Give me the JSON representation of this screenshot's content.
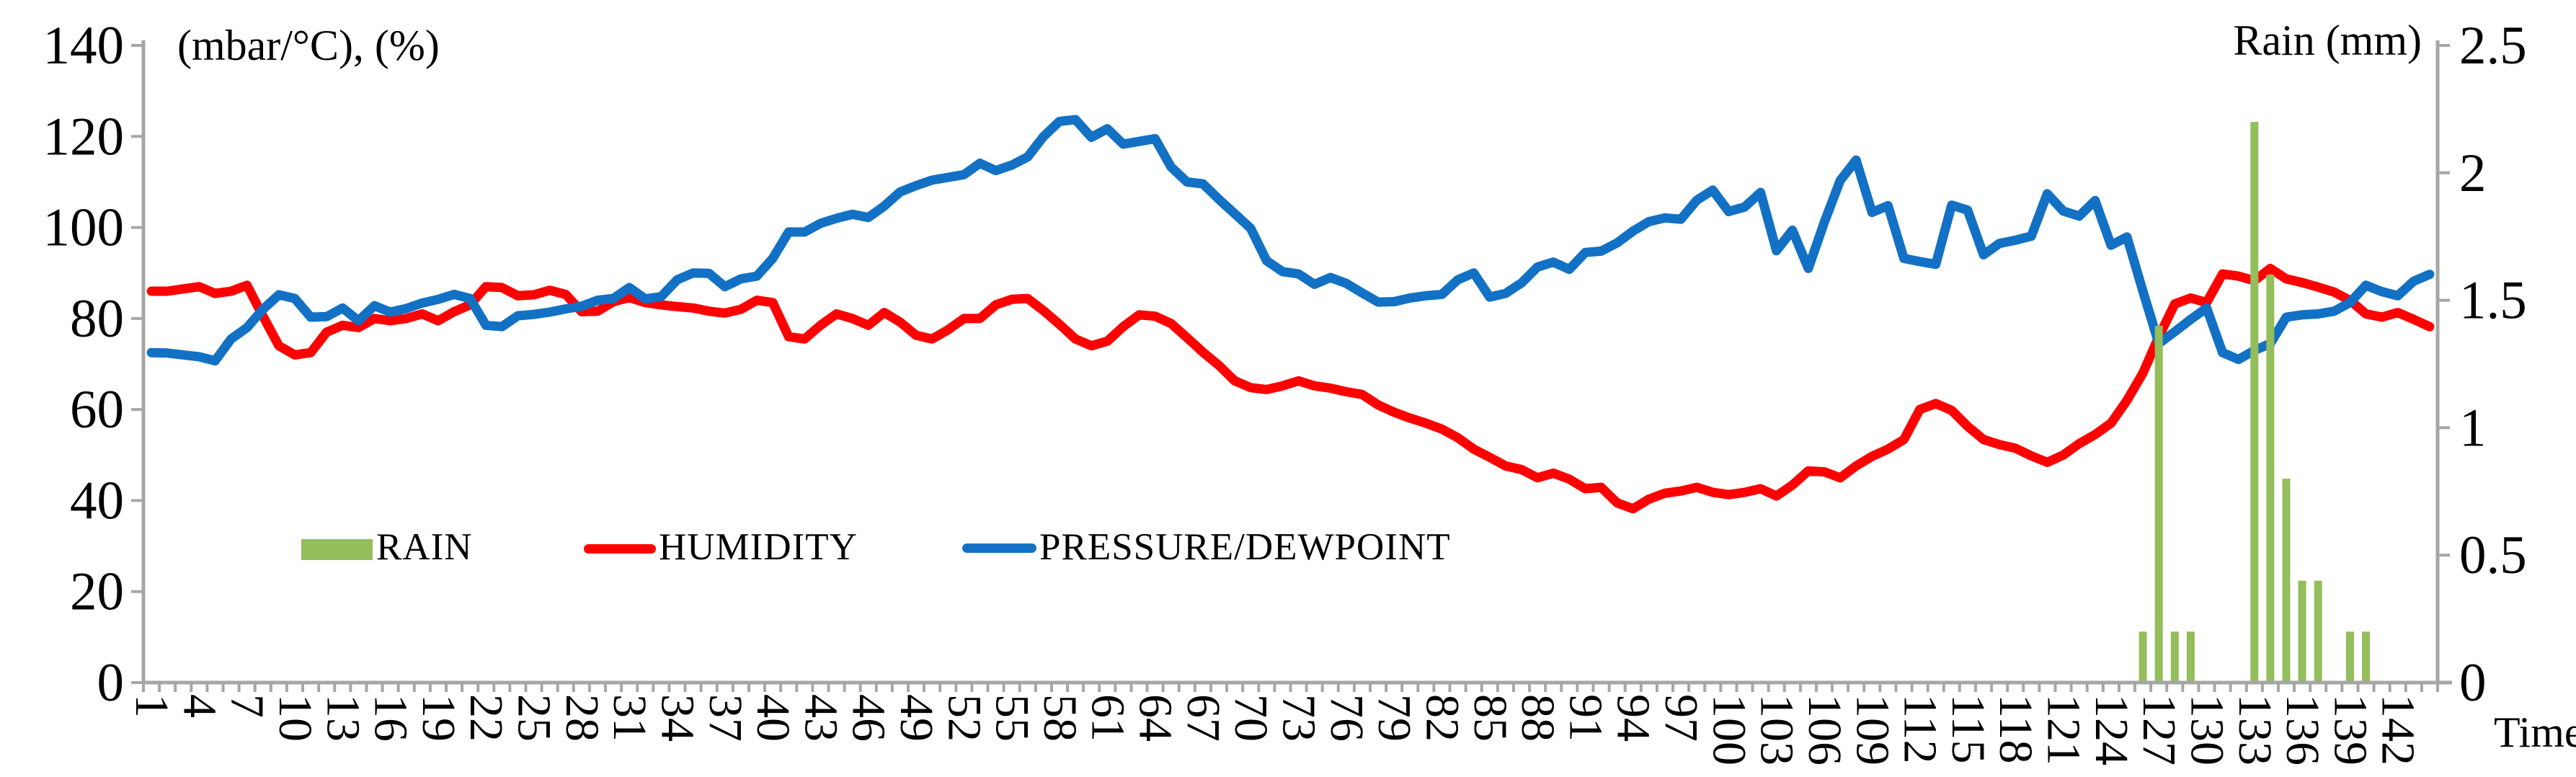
{
  "chart": {
    "title_left": "(mbar/°C), (%)",
    "title_right": "Rain (mm)",
    "x_axis_title": "Time",
    "legend": [
      {
        "label": "RAIN",
        "type": "box",
        "color": "#94BD5B"
      },
      {
        "label": "HUMIDITY",
        "type": "line",
        "color": "#FF0000"
      },
      {
        "label": "PRESSURE/DEWPOINT",
        "type": "line",
        "color": "#1271C4"
      }
    ]
  },
  "colors": {
    "rain_green": "#94BD5B",
    "humidity_red": "#FF0000",
    "pressure_blue": "#1271C4",
    "axis_gray": "#A6A6A6",
    "text_black": "#000000",
    "background": "#FFFFFF"
  },
  "chart_data": {
    "type": "combo",
    "title": "",
    "xlabel": "Time",
    "ylabel_left": "(mbar/°C), (%)",
    "ylabel_right": "Rain (mm)",
    "grid": false,
    "legend_position": "inside-left-middle",
    "x": [
      1,
      2,
      3,
      4,
      5,
      6,
      7,
      8,
      9,
      10,
      11,
      12,
      13,
      14,
      15,
      16,
      17,
      18,
      19,
      20,
      21,
      22,
      23,
      24,
      25,
      26,
      27,
      28,
      29,
      30,
      31,
      32,
      33,
      34,
      35,
      36,
      37,
      38,
      39,
      40,
      41,
      42,
      43,
      44,
      45,
      46,
      47,
      48,
      49,
      50,
      51,
      52,
      53,
      54,
      55,
      56,
      57,
      58,
      59,
      60,
      61,
      62,
      63,
      64,
      65,
      66,
      67,
      68,
      69,
      70,
      71,
      72,
      73,
      74,
      75,
      76,
      77,
      78,
      79,
      80,
      81,
      82,
      83,
      84,
      85,
      86,
      87,
      88,
      89,
      90,
      91,
      92,
      93,
      94,
      95,
      96,
      97,
      98,
      99,
      100,
      101,
      102,
      103,
      104,
      105,
      106,
      107,
      108,
      109,
      110,
      111,
      112,
      113,
      114,
      115,
      116,
      117,
      118,
      119,
      120,
      121,
      122,
      123,
      124,
      125,
      126,
      127,
      128,
      129,
      130,
      131,
      132,
      133,
      134,
      135,
      136,
      137,
      138,
      139,
      140,
      141,
      142,
      143,
      144
    ],
    "x_tick_labels": [
      1,
      4,
      7,
      10,
      13,
      16,
      19,
      22,
      25,
      28,
      31,
      34,
      37,
      40,
      43,
      46,
      49,
      52,
      55,
      58,
      61,
      64,
      67,
      70,
      73,
      76,
      79,
      82,
      85,
      88,
      91,
      94,
      97,
      100,
      103,
      106,
      109,
      112,
      115,
      118,
      121,
      124,
      127,
      130,
      133,
      136,
      139,
      142
    ],
    "left_axis": {
      "min": 0,
      "max": 140,
      "ticks": [
        0,
        20,
        40,
        60,
        80,
        100,
        120,
        140
      ]
    },
    "right_axis": {
      "min": 0,
      "max": 2.5,
      "ticks": [
        0,
        0.5,
        1,
        1.5,
        2,
        2.5
      ]
    },
    "series": [
      {
        "name": "RAIN",
        "type": "bar",
        "axis": "right",
        "color": "#94BD5B",
        "values": [
          0,
          0,
          0,
          0,
          0,
          0,
          0,
          0,
          0,
          0,
          0,
          0,
          0,
          0,
          0,
          0,
          0,
          0,
          0,
          0,
          0,
          0,
          0,
          0,
          0,
          0,
          0,
          0,
          0,
          0,
          0,
          0,
          0,
          0,
          0,
          0,
          0,
          0,
          0,
          0,
          0,
          0,
          0,
          0,
          0,
          0,
          0,
          0,
          0,
          0,
          0,
          0,
          0,
          0,
          0,
          0,
          0,
          0,
          0,
          0,
          0,
          0,
          0,
          0,
          0,
          0,
          0,
          0,
          0,
          0,
          0,
          0,
          0,
          0,
          0,
          0,
          0,
          0,
          0,
          0,
          0,
          0,
          0,
          0,
          0,
          0,
          0,
          0,
          0,
          0,
          0,
          0,
          0,
          0,
          0,
          0,
          0,
          0,
          0,
          0,
          0,
          0,
          0,
          0,
          0,
          0,
          0,
          0,
          0,
          0,
          0,
          0,
          0,
          0,
          0,
          0,
          0,
          0,
          0,
          0,
          0,
          0,
          0,
          0,
          0,
          0.2,
          1.4,
          0.2,
          0.2,
          0,
          0,
          0,
          2.2,
          1.6,
          0.8,
          0.4,
          0.4,
          0,
          0.2,
          0.2,
          0,
          0,
          0,
          0
        ]
      },
      {
        "name": "HUMIDITY",
        "type": "line",
        "axis": "left",
        "color": "#FF0000",
        "values": [
          86,
          86,
          86.5,
          87,
          85.5,
          86,
          87.3,
          80.5,
          74,
          72,
          72.5,
          77,
          78.5,
          78,
          80,
          79.5,
          80,
          81,
          79.5,
          81.5,
          83,
          87,
          86.8,
          85,
          85.2,
          86.2,
          85.3,
          81.5,
          81.6,
          83.7,
          84.6,
          83.5,
          83,
          82.6,
          82.3,
          81.6,
          81.2,
          82,
          84,
          83.5,
          76,
          75.5,
          78.5,
          81,
          80,
          78.5,
          81.3,
          79.2,
          76.3,
          75.5,
          77.5,
          80,
          80,
          83,
          84.2,
          84.4,
          81.7,
          78.7,
          75.5,
          74,
          75,
          78.2,
          80.8,
          80.5,
          78.9,
          75.8,
          72.6,
          69.7,
          66.3,
          64.8,
          64.4,
          65.2,
          66.3,
          65.2,
          64.7,
          63.9,
          63.3,
          61,
          59.4,
          58.1,
          57,
          55.7,
          53.8,
          51.3,
          49.5,
          47.6,
          46.8,
          45,
          46,
          44.7,
          42.6,
          42.9,
          39.5,
          38.2,
          40.3,
          41.6,
          42.1,
          42.9,
          41.8,
          41.3,
          41.8,
          42.6,
          41,
          43.4,
          46.5,
          46.3,
          45,
          47.6,
          49.7,
          51.3,
          53.4,
          60,
          61.3,
          59.8,
          56.3,
          53.4,
          52.3,
          51.5,
          49.8,
          48.4,
          50,
          52.5,
          54.5,
          57,
          62,
          68,
          76,
          83.2,
          84.5,
          83.5,
          89.8,
          89.3,
          88.3,
          91,
          88.7,
          87.9,
          86.9,
          85.8,
          84,
          81,
          80.3,
          81.3,
          79.8,
          78.2
        ]
      },
      {
        "name": "PRESSURE/DEWPOINT",
        "type": "line",
        "axis": "left",
        "color": "#1271C4",
        "values": [
          72.5,
          72.4,
          72,
          71.6,
          70.7,
          75.5,
          78,
          82,
          85.2,
          84.4,
          80.3,
          80.4,
          82.3,
          79.5,
          82.8,
          81.4,
          82.2,
          83.4,
          84.2,
          85.3,
          84.4,
          78.5,
          78.2,
          80.6,
          80.9,
          81.4,
          82.1,
          82.7,
          84,
          84.4,
          86.8,
          84.3,
          84.8,
          88.5,
          90,
          89.9,
          87,
          88.7,
          89.3,
          93.2,
          99,
          99,
          100.9,
          102,
          102.9,
          102.2,
          104.7,
          107.8,
          109.2,
          110.4,
          111,
          111.6,
          114.1,
          112.5,
          113.7,
          115.5,
          120,
          123.3,
          123.7,
          119.8,
          121.7,
          118.3,
          118.9,
          119.5,
          113.3,
          110,
          109.6,
          106.2,
          103,
          99.8,
          92.7,
          90.3,
          89.8,
          87.5,
          89,
          87.7,
          85.6,
          83.6,
          83.7,
          84.5,
          85,
          85.3,
          88.5,
          90,
          84.7,
          85.5,
          87.8,
          91.3,
          92.4,
          90.8,
          94.5,
          94.8,
          96.6,
          99.2,
          101.3,
          102.1,
          101.8,
          106,
          108.2,
          103.5,
          104.5,
          107.7,
          94.9,
          99.4,
          91,
          101.1,
          110.3,
          114.8,
          103.3,
          104.8,
          93.2,
          92.5,
          91.9,
          104.9,
          103.8,
          94,
          96.5,
          97.2,
          98.1,
          107.4,
          103.6,
          102.5,
          105.9,
          96.1,
          97.9,
          86,
          74.5,
          77.1,
          79.8,
          82.3,
          72.5,
          71,
          73,
          74.5,
          80.3,
          80.8,
          81,
          81.6,
          83.5,
          87.3,
          85.9,
          85,
          88.2,
          89.7
        ]
      }
    ]
  }
}
